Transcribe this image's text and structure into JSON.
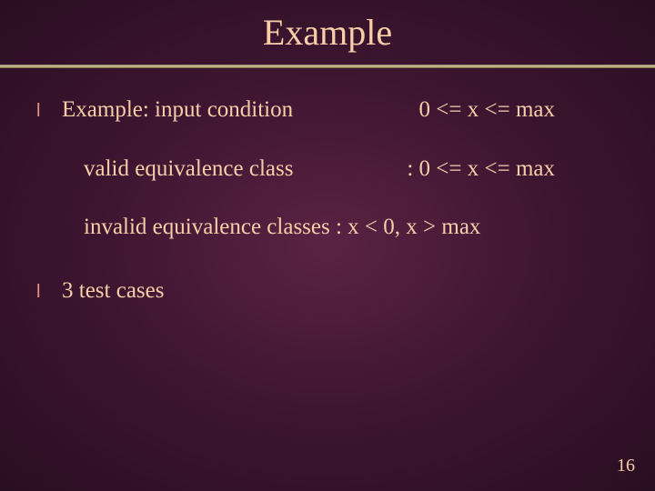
{
  "title": "Example",
  "bullet_glyph": "l",
  "lines": {
    "l1_left": "Example:  input condition",
    "l1_right": "0 <= x <= max",
    "l2_left": "valid equivalence class",
    "l2_right": ":   0 <= x <= max",
    "l3": "invalid equivalence classes :  x < 0,  x > max",
    "l4": "3 test cases"
  },
  "page_number": "16",
  "colors": {
    "background_center": "#5a2344",
    "background_edge": "#2a0e22",
    "text": "#f8cea8",
    "bullet": "#e89090",
    "divider": "#d4c89a"
  },
  "typography": {
    "title_fontsize": 40,
    "body_fontsize": 25,
    "pagenum_fontsize": 20,
    "font_family": "Times New Roman"
  }
}
